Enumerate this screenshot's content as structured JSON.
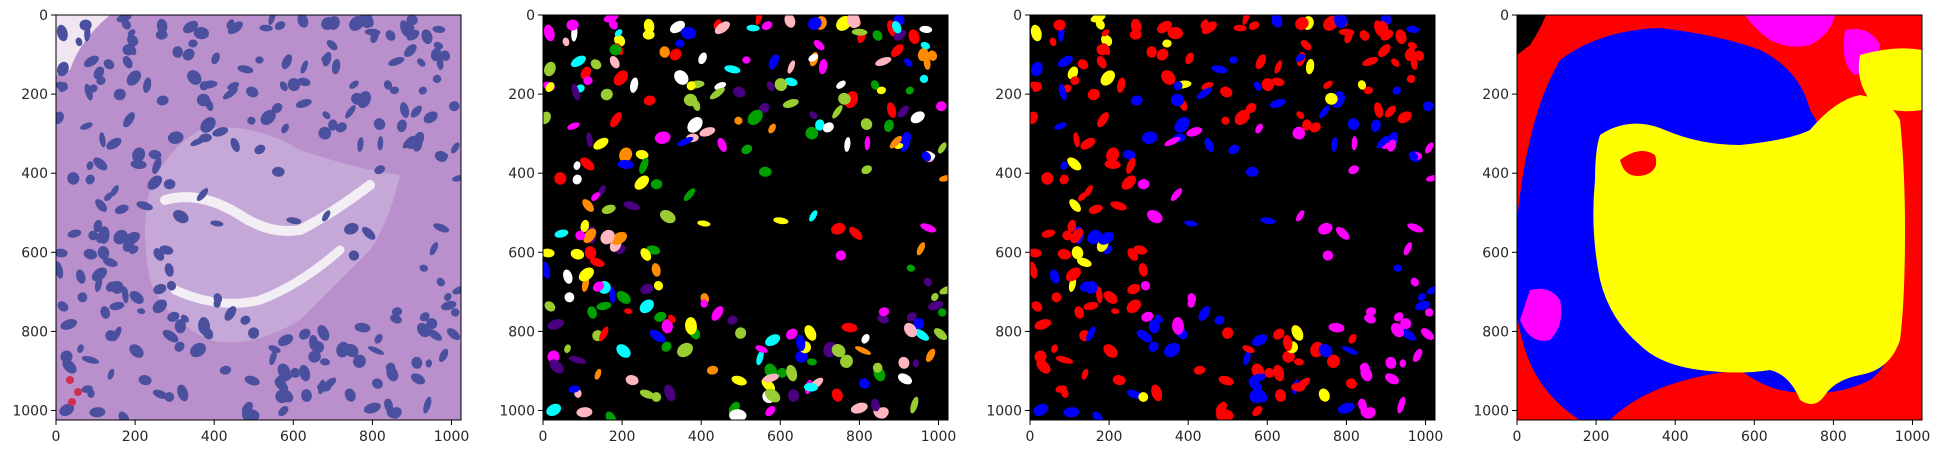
{
  "figure": {
    "panels": [
      {
        "name": "histology-image",
        "content": "H&E stained tissue patch",
        "xticks": [
          "0",
          "200",
          "400",
          "600",
          "800",
          "1000"
        ],
        "yticks": [
          "0",
          "200",
          "400",
          "600",
          "800",
          "1000"
        ]
      },
      {
        "name": "instance-segmentation",
        "content": "nuclei instance mask, random colors on black",
        "xticks": [
          "0",
          "200",
          "400",
          "600",
          "800",
          "1000"
        ],
        "yticks": [
          "0",
          "200",
          "400",
          "600",
          "800",
          "1000"
        ]
      },
      {
        "name": "nuclei-class-segmentation",
        "content": "nuclei class mask on black",
        "xticks": [
          "0",
          "200",
          "400",
          "600",
          "800",
          "1000"
        ],
        "yticks": [
          "0",
          "200",
          "400",
          "600",
          "800",
          "1000"
        ]
      },
      {
        "name": "tissue-region-segmentation",
        "content": "tissue region mask",
        "xticks": [
          "0",
          "200",
          "400",
          "600",
          "800",
          "1000"
        ],
        "yticks": [
          "0",
          "200",
          "400",
          "600",
          "800",
          "1000"
        ]
      }
    ],
    "image_size": 1024,
    "colors": {
      "tissue_bg": "#c9a3d6",
      "nucleus": "#4a4f9e",
      "mask_bg": "#000000",
      "class_red": "#ff0000",
      "class_blue": "#0000ff",
      "class_magenta": "#ff00ff",
      "class_yellow": "#ffff00",
      "instance_palette": [
        "#ff0000",
        "#00ffff",
        "#ff00ff",
        "#ffff00",
        "#ff8c00",
        "#00a000",
        "#0000ff",
        "#9acd32",
        "#ffb6c1",
        "#4b0082",
        "#ffffff"
      ]
    }
  }
}
